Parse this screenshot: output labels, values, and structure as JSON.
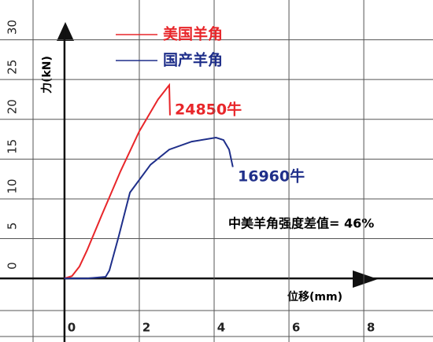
{
  "chart_data": {
    "type": "line",
    "xlabel": "位移(mm)",
    "ylabel": "力(kN)",
    "series": [
      {
        "name": "美国羊角",
        "color": "#e8262a",
        "x": [
          0,
          0.2,
          0.4,
          0.6,
          1.0,
          1.5,
          2.0,
          2.5,
          2.75,
          2.8,
          2.82
        ],
        "values": [
          0,
          0.3,
          1.5,
          3.5,
          8,
          13.5,
          18.5,
          22.5,
          24,
          24.3,
          20.5
        ]
      },
      {
        "name": "国产羊角",
        "color": "#1f2f8a",
        "x": [
          0,
          0.6,
          1.1,
          1.2,
          1.45,
          1.75,
          2.3,
          2.8,
          3.4,
          4.05,
          4.25,
          4.4,
          4.5
        ],
        "values": [
          0,
          0,
          0.2,
          1,
          5.3,
          10.8,
          14.3,
          16.2,
          17.2,
          17.7,
          17.4,
          16.2,
          14
        ]
      }
    ],
    "annotations": [
      {
        "text": "24850牛",
        "color": "#e8262a"
      },
      {
        "text": "16960牛",
        "color": "#1f2f8a"
      },
      {
        "text": "中美羊角强度差值= 46%",
        "color": "#000000"
      }
    ],
    "xlim": [
      -0.84,
      9.85
    ],
    "xticks": [
      0,
      2,
      4,
      6,
      8
    ],
    "ylim": [
      -7.5,
      35
    ],
    "yticks": [
      0,
      5,
      10,
      15,
      20,
      25,
      30
    ],
    "grid": true
  }
}
